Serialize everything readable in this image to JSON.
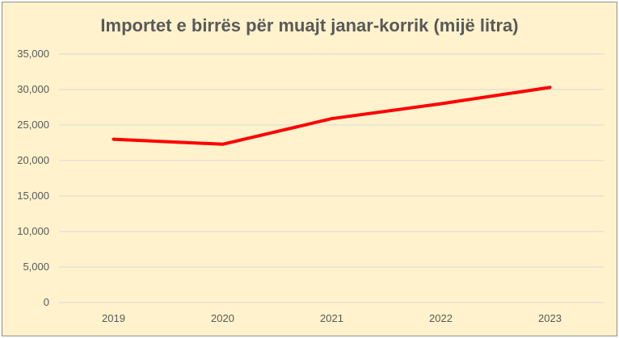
{
  "chart_data": {
    "type": "line",
    "title": "Importet e birrës për muajt janar-korrik (mijë litra)",
    "categories": [
      "2019",
      "2020",
      "2021",
      "2022",
      "2023"
    ],
    "series": [
      {
        "values": [
          23000,
          22300,
          25900,
          28000,
          30300
        ],
        "color": "#ff0000"
      }
    ],
    "y_ticks": [
      "0",
      "5,000",
      "10,000",
      "15,000",
      "20,000",
      "25,000",
      "30,000",
      "35,000"
    ],
    "ylim": [
      0,
      35000
    ],
    "grid": true,
    "legend": "none",
    "colors": {
      "background": "#fff2cc",
      "grid": "#d9d9d9",
      "text": "#595959"
    }
  }
}
